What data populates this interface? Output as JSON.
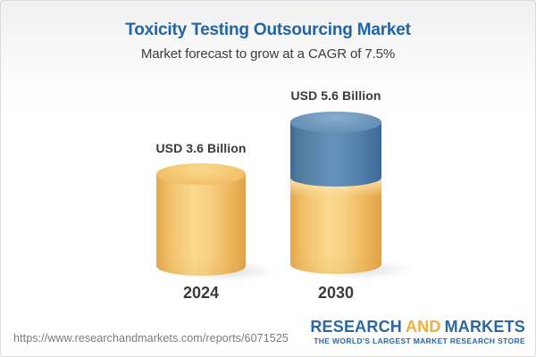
{
  "header": {
    "title": "Toxicity Testing Outsourcing Market",
    "subtitle": "Market forecast to grow at a CAGR of 7.5%"
  },
  "chart_data": {
    "type": "bar",
    "variant": "3d-cylinder",
    "title": "Toxicity Testing Outsourcing Market",
    "subtitle": "Market forecast to grow at a CAGR of 7.5%",
    "cagr_percent": 7.5,
    "unit": "USD Billion",
    "categories": [
      "2024",
      "2030"
    ],
    "values": [
      3.6,
      5.6
    ],
    "value_labels": [
      "USD 3.6 Billion",
      "USD 5.6 Billion"
    ],
    "segments_2030": {
      "base_gold": 3.6,
      "growth_blue": 2.0
    },
    "legend": "none",
    "grid": "off",
    "colors": {
      "gold": "#F2C36B",
      "blue": "#5A86AF",
      "title_blue": "#2065A7",
      "label_text": "#3A3A3A"
    }
  },
  "footer": {
    "url": "https://www.researchandmarkets.com/reports/6071525",
    "logo": {
      "word1": "RESEARCH",
      "word2": "AND",
      "word3": "MARKETS",
      "tagline": "THE WORLD'S LARGEST MARKET RESEARCH STORE",
      "blue": "#2A67A4",
      "gold": "#F0AF3C"
    }
  }
}
